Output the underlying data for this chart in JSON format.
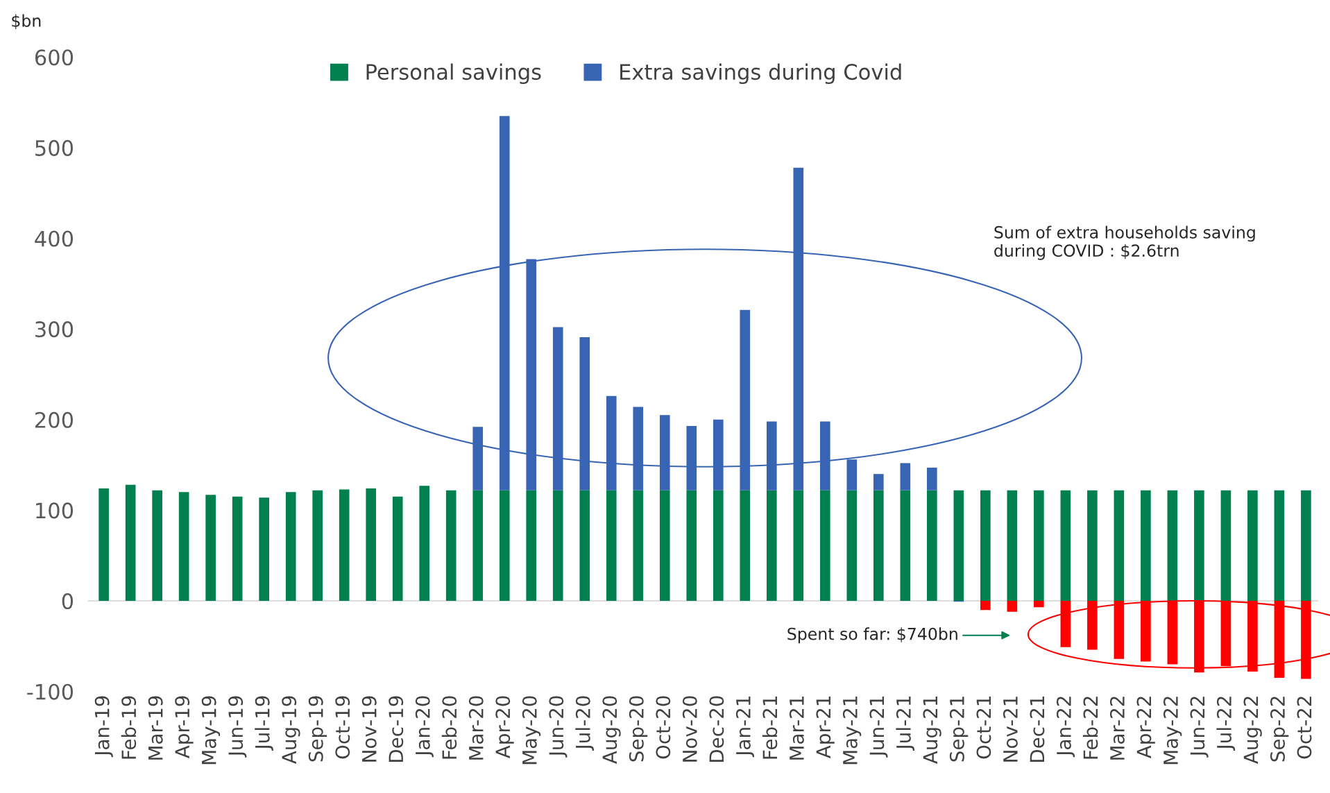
{
  "chart_data": {
    "type": "bar",
    "stacked": true,
    "ylabel": "$bn",
    "categories": [
      "Jan-19",
      "Feb-19",
      "Mar-19",
      "Apr-19",
      "May-19",
      "Jun-19",
      "Jul-19",
      "Aug-19",
      "Sep-19",
      "Oct-19",
      "Nov-19",
      "Dec-19",
      "Jan-20",
      "Feb-20",
      "Mar-20",
      "Apr-20",
      "May-20",
      "Jun-20",
      "Jul-20",
      "Aug-20",
      "Sep-20",
      "Oct-20",
      "Nov-20",
      "Dec-20",
      "Jan-21",
      "Feb-21",
      "Mar-21",
      "Apr-21",
      "May-21",
      "Jun-21",
      "Jul-21",
      "Aug-21",
      "Sep-21",
      "Oct-21",
      "Nov-21",
      "Dec-21",
      "Jan-22",
      "Feb-22",
      "Mar-22",
      "Apr-22",
      "May-22",
      "Jun-22",
      "Jul-22",
      "Aug-22",
      "Sep-22",
      "Oct-22"
    ],
    "series": [
      {
        "name": "Personal savings",
        "color": "#00804f",
        "values": [
          124,
          128,
          122,
          120,
          117,
          115,
          114,
          120,
          122,
          123,
          124,
          115,
          127,
          122,
          122,
          122,
          122,
          122,
          122,
          122,
          122,
          122,
          122,
          122,
          122,
          122,
          122,
          122,
          122,
          122,
          122,
          122,
          122,
          122,
          122,
          122,
          122,
          122,
          122,
          122,
          122,
          122,
          122,
          122,
          122,
          122
        ]
      },
      {
        "name": "Extra savings during Covid",
        "color": "#3864b4",
        "colors": [
          "#3864b4",
          "#3864b4",
          "#3864b4",
          "#3864b4",
          "#3864b4",
          "#3864b4",
          "#3864b4",
          "#3864b4",
          "#3864b4",
          "#3864b4",
          "#3864b4",
          "#3864b4",
          "#3864b4",
          "#3864b4",
          "#3864b4",
          "#3864b4",
          "#3864b4",
          "#3864b4",
          "#3864b4",
          "#3864b4",
          "#3864b4",
          "#3864b4",
          "#3864b4",
          "#3864b4",
          "#3864b4",
          "#3864b4",
          "#3864b4",
          "#3864b4",
          "#3864b4",
          "#3864b4",
          "#3864b4",
          "#3864b4",
          "#3864b4",
          "#ff0000",
          "#ff0000",
          "#ff0000",
          "#ff0000",
          "#ff0000",
          "#ff0000",
          "#ff0000",
          "#ff0000",
          "#ff0000",
          "#ff0000",
          "#ff0000",
          "#ff0000",
          "#ff0000"
        ],
        "values": [
          null,
          null,
          null,
          null,
          null,
          null,
          null,
          null,
          null,
          null,
          null,
          null,
          null,
          null,
          70,
          413,
          255,
          180,
          169,
          104,
          92,
          83,
          71,
          78,
          199,
          76,
          356,
          76,
          34,
          18,
          30,
          25,
          -1,
          -10,
          -12,
          -7,
          -51,
          -54,
          -64,
          -67,
          -70,
          -79,
          -72,
          -78,
          -85,
          -86
        ]
      }
    ],
    "ylim": [
      -100,
      600
    ],
    "yticks": [
      -100,
      0,
      100,
      200,
      300,
      400,
      500,
      600
    ],
    "ref_lines": [
      {
        "axis": "y",
        "value": 0,
        "color": "#d9d9d9"
      }
    ],
    "legend": "top",
    "grid": false,
    "annotations": [
      "Sum of extra households saving\nduring COVID : $2.6trn",
      "Spent so far: $740bn"
    ]
  }
}
